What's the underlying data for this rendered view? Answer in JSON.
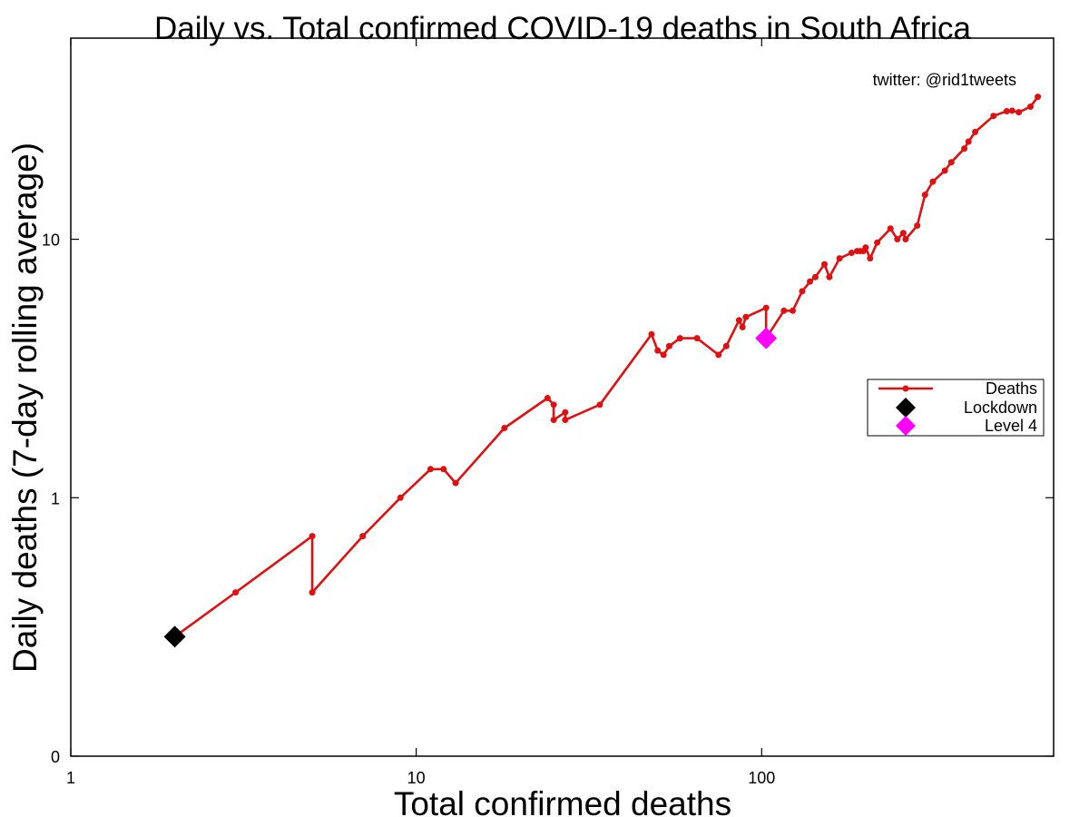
{
  "chart_data": {
    "type": "line",
    "title": "Daily vs. Total confirmed COVID-19 deaths in South Africa",
    "xlabel": "Total confirmed deaths",
    "ylabel": "Daily deaths (7-day rolling average)",
    "annotation": "twitter: @rid1tweets",
    "x_scale": "log",
    "y_scale": "log",
    "xlim": [
      1,
      700
    ],
    "x_ticks": [
      {
        "value": 1,
        "label": "1"
      },
      {
        "value": 10,
        "label": "10"
      },
      {
        "value": 100,
        "label": "100"
      }
    ],
    "y_ticks": [
      {
        "value": 0.1,
        "label": "0"
      },
      {
        "value": 1,
        "label": "1"
      },
      {
        "value": 10,
        "label": "10"
      }
    ],
    "ylim_label_range": [
      0.1,
      60
    ],
    "grid": false,
    "legend_position": "right",
    "legend": [
      "Deaths",
      "Lockdown",
      "Level 4"
    ],
    "series": [
      {
        "name": "Deaths",
        "color": "#e01010",
        "x": [
          2,
          3,
          5,
          5,
          7,
          9,
          11,
          12,
          13,
          18,
          24,
          25,
          25,
          27,
          27,
          34,
          48,
          50,
          52,
          54,
          58,
          65,
          75,
          79,
          86,
          88,
          90,
          103,
          103,
          116,
          123,
          131,
          138,
          143,
          152,
          157,
          168,
          182,
          189,
          193,
          197,
          200,
          206,
          216,
          236,
          247,
          257,
          261,
          282,
          297,
          313,
          339,
          354,
          386,
          397,
          415,
          469,
          512,
          531,
          555,
          600,
          630
        ],
        "y": [
          0.29,
          0.43,
          0.71,
          0.43,
          0.71,
          1.0,
          1.29,
          1.29,
          1.14,
          1.86,
          2.43,
          2.29,
          2.0,
          2.14,
          2.0,
          2.29,
          4.29,
          3.71,
          3.57,
          3.86,
          4.14,
          4.14,
          3.57,
          3.86,
          4.86,
          4.57,
          5.0,
          5.43,
          4.14,
          5.29,
          5.29,
          6.29,
          6.86,
          7.14,
          8.0,
          7.14,
          8.43,
          8.86,
          9.0,
          9.0,
          9.0,
          9.29,
          8.43,
          9.71,
          11.0,
          10.0,
          10.57,
          10.0,
          11.29,
          14.86,
          16.71,
          18.43,
          19.86,
          22.43,
          23.86,
          26.0,
          30.0,
          31.29,
          31.43,
          31.0,
          32.57,
          35.57
        ]
      },
      {
        "name": "Lockdown",
        "color": "#000000",
        "points": [
          {
            "x": 2,
            "y": 0.29
          }
        ]
      },
      {
        "name": "Level 4",
        "color": "#ff00ff",
        "points": [
          {
            "x": 103,
            "y": 4.14
          }
        ]
      }
    ]
  }
}
